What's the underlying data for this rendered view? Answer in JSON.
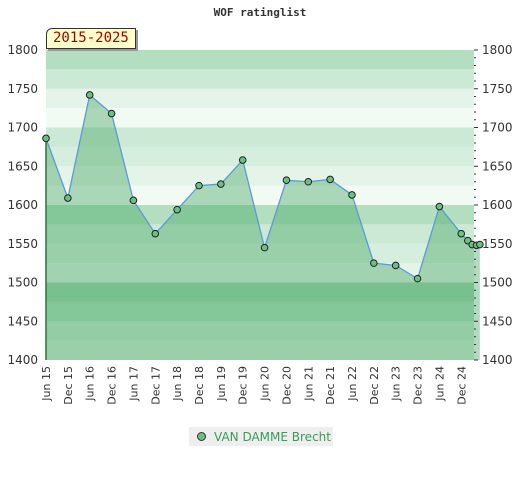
{
  "chart_data": {
    "type": "line",
    "title": "WOF ratinglist",
    "period": "2015-2025",
    "ylim": [
      1400,
      1800
    ],
    "y_ticks": [
      1400,
      1450,
      1500,
      1550,
      1600,
      1650,
      1700,
      1750,
      1800
    ],
    "x_ticks": [
      "Jun 15",
      "Dec 15",
      "Jun 16",
      "Dec 16",
      "Jun 17",
      "Dec 17",
      "Jun 18",
      "Dec 18",
      "Jun 19",
      "Dec 19",
      "Jun 20",
      "Dec 20",
      "Jun 21",
      "Dec 21",
      "Jun 22",
      "Dec 22",
      "Jun 23",
      "Dec 23",
      "Jun 24",
      "Dec 24"
    ],
    "legend_position": "bottom",
    "series": [
      {
        "name": "VAN DAMME Brecht",
        "color": "#6dbf83",
        "line_color": "#5b9bd5",
        "x": [
          0,
          1,
          2,
          3,
          4,
          5,
          6,
          7,
          8,
          9,
          10,
          11,
          12,
          13,
          14,
          15,
          16,
          17,
          18,
          19,
          19.3,
          19.5,
          19.7,
          19.85
        ],
        "values": [
          1686,
          1609,
          1742,
          1718,
          1606,
          1563,
          1594,
          1625,
          1627,
          1658,
          1545,
          1632,
          1630,
          1633,
          1613,
          1525,
          1522,
          1505,
          1598,
          1563,
          1554,
          1549,
          1548,
          1549
        ]
      }
    ]
  }
}
